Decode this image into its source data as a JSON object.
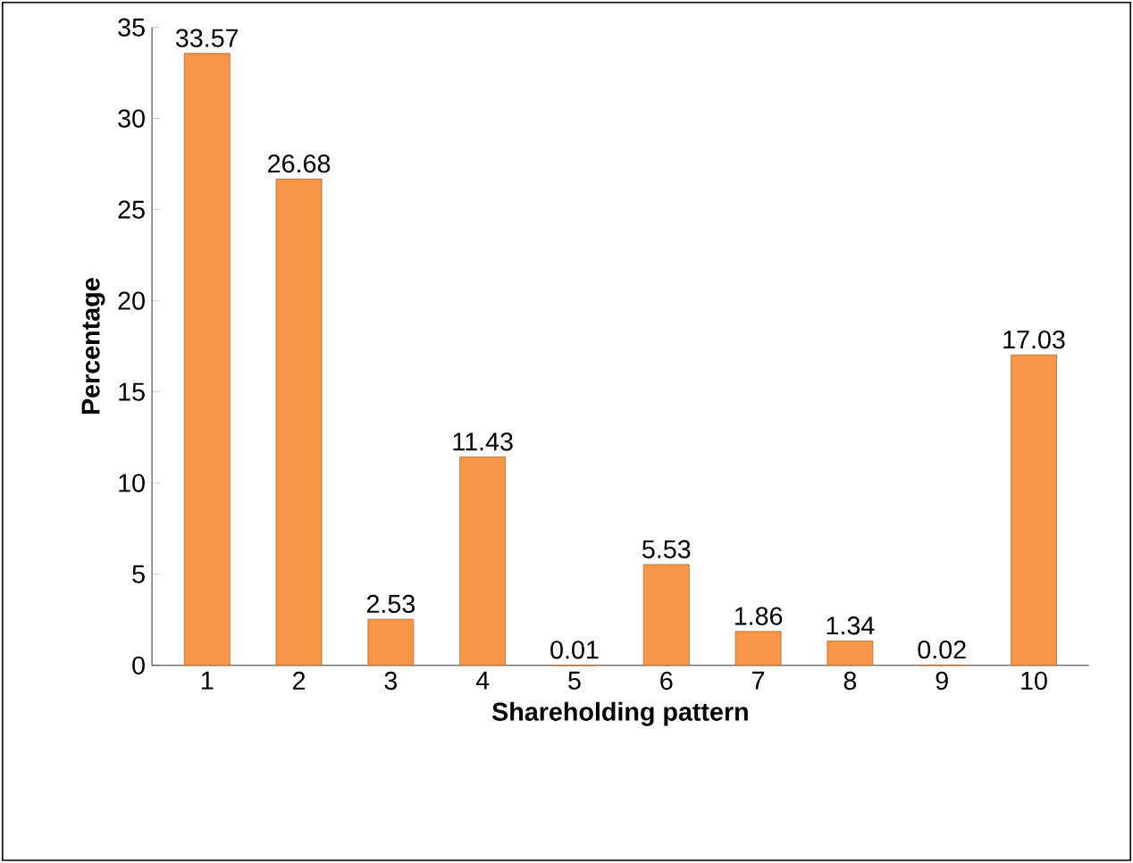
{
  "chart_data": {
    "type": "bar",
    "categories": [
      "1",
      "2",
      "3",
      "4",
      "5",
      "6",
      "7",
      "8",
      "9",
      "10"
    ],
    "values": [
      33.57,
      26.68,
      2.53,
      11.43,
      0.01,
      5.53,
      1.86,
      1.34,
      0.02,
      17.03
    ],
    "color": "#f79646",
    "xlabel": "Shareholding pattern",
    "ylabel": "Percentage",
    "ylim": [
      0,
      35
    ],
    "yticks": [
      0,
      5,
      10,
      15,
      20,
      25,
      30,
      35
    ],
    "data_labels": true
  }
}
